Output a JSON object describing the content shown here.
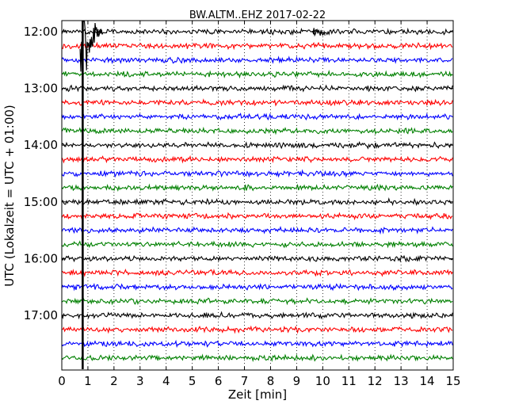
{
  "chart_data": {
    "type": "line",
    "title": "BW.ALTM..EHZ 2017-02-22",
    "xlabel": "Zeit  [min]",
    "ylabel": "UTC (Lokalzeit = UTC + 01:00)",
    "xlim": [
      0,
      15
    ],
    "x_ticks": [
      0,
      1,
      2,
      3,
      4,
      5,
      6,
      7,
      8,
      9,
      10,
      11,
      12,
      13,
      14,
      15
    ],
    "x_tick_labels": [
      "0",
      "1",
      "2",
      "3",
      "4",
      "5",
      "6",
      "7",
      "8",
      "9",
      "10",
      "11",
      "12",
      "13",
      "14",
      "15"
    ],
    "y_tick_labels": [
      "12:00",
      "13:00",
      "14:00",
      "15:00",
      "16:00",
      "17:00"
    ],
    "grid": "vertical dotted lines at each minute",
    "trace_interval_min": 15,
    "trace_start": "12:00",
    "trace_count": 24,
    "trace_color_cycle": [
      "#000000",
      "#ff0000",
      "#0000ff",
      "#008000"
    ],
    "events": [
      {
        "trace_start": "12:00",
        "start_min": 0.7,
        "end_min": 1.6,
        "peak_amplitude": "clipped",
        "description": "large event burst"
      },
      {
        "trace_start": "12:00",
        "start_min": 9.6,
        "end_min": 10.1,
        "peak_amplitude": "small"
      }
    ],
    "spike_line": {
      "x_min": 0.8,
      "from": "12:00",
      "to": "17:45"
    }
  }
}
